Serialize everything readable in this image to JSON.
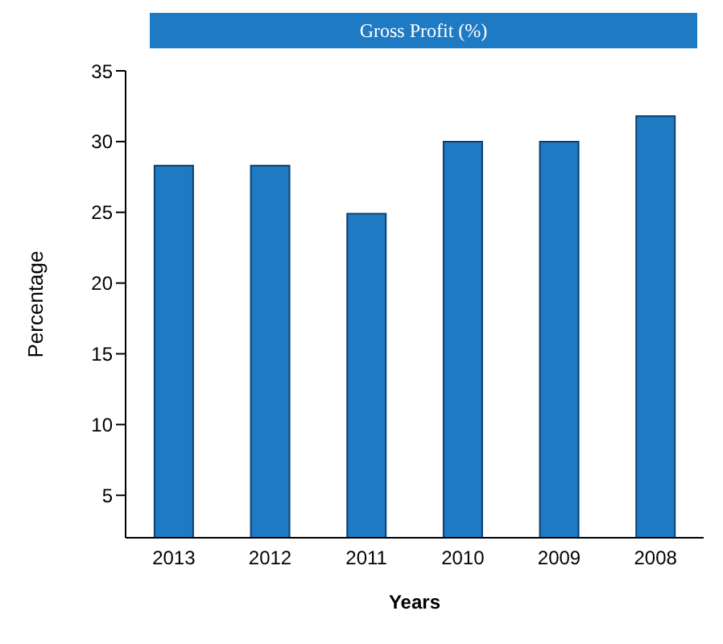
{
  "chart_data": {
    "type": "bar",
    "title": "Gross Profit (%)",
    "xlabel": "Years",
    "ylabel": "Percentage",
    "categories": [
      "2013",
      "2012",
      "2011",
      "2010",
      "2009",
      "2008"
    ],
    "values": [
      28.3,
      28.3,
      24.9,
      30,
      30,
      31.8
    ],
    "color": "#1f7ac4",
    "ylim": [
      2,
      35
    ],
    "yticks": [
      5,
      10,
      15,
      20,
      25,
      30,
      35
    ],
    "grid": false
  }
}
